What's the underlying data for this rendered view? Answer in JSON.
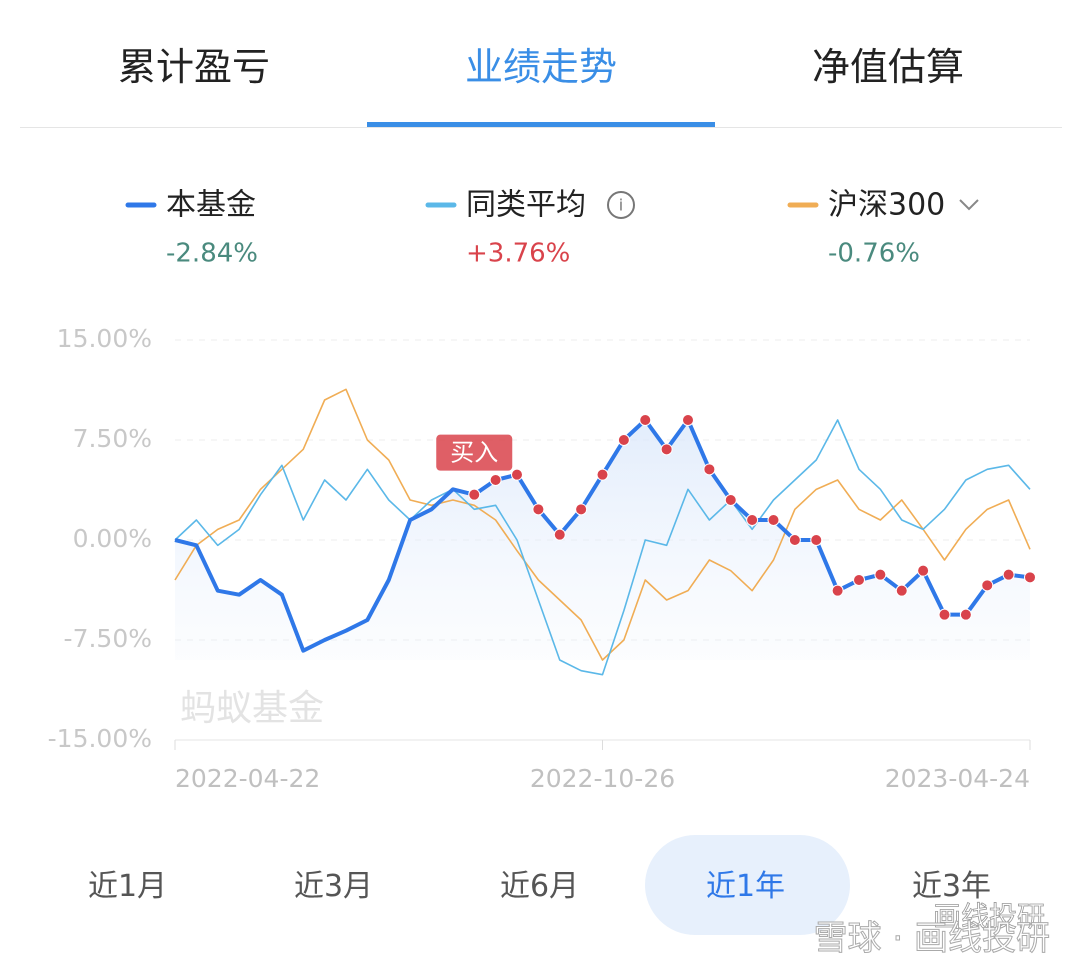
{
  "tabs": {
    "items": [
      "累计盈亏",
      "业绩走势",
      "净值估算"
    ],
    "active": 1
  },
  "legend": [
    {
      "name": "本基金",
      "value": "-2.84%",
      "value_color": "#4a8a7e"
    },
    {
      "name": "同类平均",
      "value": "+3.76%",
      "value_color": "#d9434b"
    },
    {
      "name": "沪深300",
      "value": "-0.76%",
      "value_color": "#4a8a7e"
    }
  ],
  "chart_data": {
    "type": "line",
    "watermark": "蚂蚁基金",
    "categories": [
      "2022-04-22",
      null,
      null,
      null,
      null,
      null,
      null,
      null,
      null,
      null,
      null,
      null,
      null,
      null,
      null,
      null,
      null,
      null,
      null,
      null,
      "2022-10-26",
      null,
      null,
      null,
      null,
      null,
      null,
      null,
      null,
      null,
      null,
      null,
      null,
      null,
      null,
      null,
      null,
      null,
      null,
      null,
      "2023-04-24"
    ],
    "ylim": [
      -15,
      15
    ],
    "yticks": [
      {
        "value": 15,
        "label": "15.00%"
      },
      {
        "value": 7.5,
        "label": "7.50%"
      },
      {
        "value": 0,
        "label": "0.00%"
      },
      {
        "value": -7.5,
        "label": "-7.50%"
      },
      {
        "value": -15,
        "label": "-15.00%"
      }
    ],
    "grid": true,
    "buy_marker": {
      "label": "买入",
      "from": 14,
      "color": "#d9434b"
    },
    "series": [
      {
        "name": "本基金",
        "color": "#2f78e8",
        "width": 4,
        "values": [
          0,
          -0.4,
          -3.8,
          -4.1,
          -3,
          -4.1,
          -8.3,
          -7.5,
          -6.8,
          -6,
          -3,
          1.5,
          2.3,
          3.8,
          3.4,
          4.5,
          4.9,
          2.3,
          0.4,
          2.3,
          4.9,
          7.5,
          9,
          6.8,
          9,
          5.3,
          3,
          1.5,
          1.5,
          0,
          0,
          -3.8,
          -3,
          -2.6,
          -3.8,
          -2.3,
          -5.6,
          -5.6,
          -3.4,
          -2.6,
          -2.8
        ]
      },
      {
        "name": "同类平均",
        "color": "#5bb8e8",
        "width": 1.6,
        "values": [
          0,
          1.5,
          -0.4,
          0.8,
          3.4,
          5.6,
          1.5,
          4.5,
          3,
          5.3,
          3,
          1.5,
          3,
          3.8,
          2.3,
          2.6,
          0,
          -4.5,
          -9,
          -9.8,
          -10.1,
          -5.3,
          0,
          -0.4,
          3.8,
          1.5,
          3,
          0.8,
          3,
          4.5,
          6,
          9,
          5.3,
          3.8,
          1.5,
          0.8,
          2.3,
          4.5,
          5.3,
          5.6,
          3.8
        ]
      },
      {
        "name": "沪深300",
        "color": "#f0ad55",
        "width": 1.6,
        "values": [
          -3,
          -0.4,
          0.8,
          1.5,
          3.8,
          5.3,
          6.8,
          10.5,
          11.3,
          7.5,
          6,
          3,
          2.6,
          3,
          2.6,
          1.5,
          -0.8,
          -3,
          -4.5,
          -6,
          -9,
          -7.5,
          -3,
          -4.5,
          -3.8,
          -1.5,
          -2.3,
          -3.8,
          -1.5,
          2.3,
          3.8,
          4.5,
          2.3,
          1.5,
          3,
          0.8,
          -1.5,
          0.8,
          2.3,
          3,
          -0.7
        ]
      }
    ]
  },
  "periods": {
    "items": [
      "近1月",
      "近3月",
      "近6月",
      "近1年",
      "近3年"
    ],
    "active": 3
  },
  "footer": {
    "wechat": "画线投研",
    "source": "雪球 · 画线投研"
  }
}
